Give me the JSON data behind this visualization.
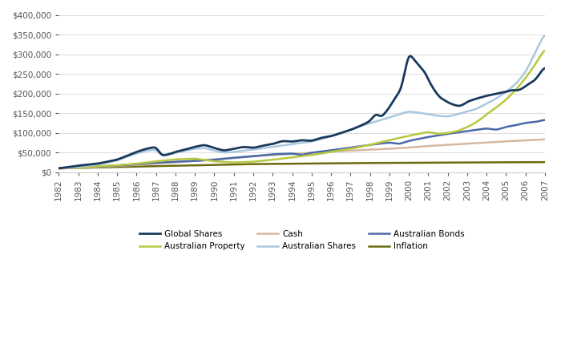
{
  "colors": {
    "global_shares": "#1a3a5c",
    "aus_shares": "#aac8e0",
    "aus_property": "#b8c840",
    "aus_bonds": "#4a6aaa",
    "cash": "#d4b8a0",
    "inflation": "#6b6b10"
  },
  "legend_labels": {
    "global_shares": "Global Shares",
    "aus_shares": "Australian Shares",
    "aus_property": "Australian Property",
    "aus_bonds": "Australian Bonds",
    "cash": "Cash",
    "inflation": "Inflation"
  },
  "ylim": [
    0,
    400000
  ],
  "yticks": [
    0,
    50000,
    100000,
    150000,
    200000,
    250000,
    300000,
    350000,
    400000
  ],
  "background_color": "#ffffff",
  "x_label_years": [
    1982,
    1983,
    1984,
    1985,
    1986,
    1987,
    1988,
    1989,
    1990,
    1991,
    1992,
    1993,
    1994,
    1995,
    1996,
    1997,
    1998,
    1999,
    2000,
    2001,
    2002,
    2003,
    2004,
    2005,
    2006,
    2007
  ]
}
